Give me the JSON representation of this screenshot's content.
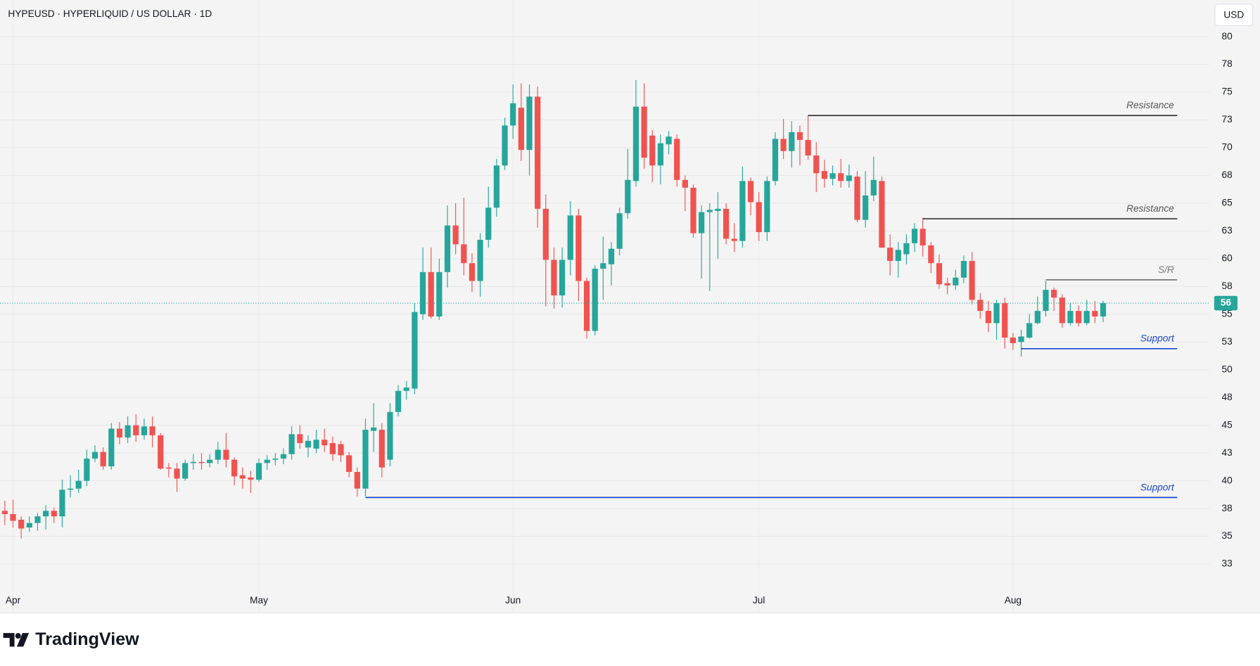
{
  "chart_data": {
    "type": "candlestick",
    "title": "HYPEUSD · HYPERLIQUID / US DOLLAR · 1D",
    "currency": "USD",
    "brand": "TradingView",
    "up_color": "#26a69a",
    "down_color": "#ef5350",
    "categories": [
      null,
      "Apr",
      null,
      null,
      null,
      null,
      null,
      null,
      null,
      null,
      null,
      null,
      null,
      null,
      null,
      null,
      null,
      null,
      null,
      null,
      null,
      null,
      null,
      null,
      null,
      null,
      null,
      null,
      null,
      null,
      null,
      "May",
      null,
      null,
      null,
      null,
      null,
      null,
      null,
      null,
      null,
      null,
      null,
      null,
      null,
      null,
      null,
      null,
      null,
      null,
      null,
      null,
      null,
      null,
      null,
      null,
      null,
      null,
      null,
      null,
      null,
      null,
      "Jun",
      null,
      null,
      null,
      null,
      null,
      null,
      null,
      null,
      null,
      null,
      null,
      null,
      null,
      null,
      null,
      null,
      null,
      null,
      null,
      null,
      null,
      null,
      null,
      null,
      null,
      null,
      null,
      null,
      null,
      "Jul",
      null,
      null,
      null,
      null,
      null,
      null,
      null,
      null,
      null,
      null,
      null,
      null,
      null,
      null,
      null,
      null,
      null,
      null,
      null,
      null,
      null,
      null,
      null,
      null,
      null,
      null,
      null,
      null,
      null,
      null,
      "Aug",
      null,
      null,
      null,
      null,
      null,
      null,
      null,
      null,
      null,
      null,
      null
    ],
    "open": [
      37.3,
      37.0,
      36.5,
      35.8,
      36.2,
      36.8,
      37.3,
      36.8,
      39.2,
      39.3,
      40.0,
      42.0,
      42.6,
      41.3,
      44.7,
      43.9,
      45.0,
      44.1,
      44.9,
      44.1,
      41.2,
      41.1,
      40.2,
      41.6,
      41.7,
      41.6,
      41.9,
      42.8,
      41.9,
      40.5,
      40.3,
      40.1,
      41.6,
      41.9,
      42.0,
      42.4,
      44.2,
      43.0,
      42.9,
      43.7,
      43.4,
      43.3,
      42.3,
      40.8,
      39.3,
      44.5,
      44.6,
      41.9,
      46.2,
      48.1,
      48.3,
      55.0,
      58.8,
      54.8,
      58.8,
      63.0,
      61.3,
      59.6,
      58.0,
      61.7,
      64.6,
      68.4,
      72.0,
      73.6,
      69.8,
      74.6,
      64.5,
      59.9,
      56.7,
      59.9,
      63.9,
      58.0,
      53.5,
      59.1,
      59.5,
      60.9,
      64.1,
      67.0,
      73.7,
      71.1,
      68.4,
      70.3,
      70.8,
      67.1,
      66.4,
      62.3,
      64.2,
      64.3,
      64.5,
      61.8,
      61.6,
      67.0,
      65.1,
      62.4,
      67.0,
      70.8,
      69.7,
      71.4,
      70.7,
      69.3,
      67.9,
      67.2,
      67.7,
      67.0,
      67.4,
      63.5,
      65.7,
      67.0,
      61.0,
      59.8,
      60.4,
      61.4,
      62.7,
      61.2,
      59.6,
      57.8,
      57.6,
      58.3,
      59.8,
      56.3,
      55.3,
      54.2,
      56.0,
      52.9,
      52.5,
      52.9,
      54.2,
      55.3,
      57.2,
      56.5,
      54.2,
      55.3,
      54.2,
      55.3,
      54.8
    ],
    "high": [
      38.2,
      38.3,
      36.8,
      36.8,
      37.1,
      37.8,
      37.6,
      40.1,
      40.5,
      41.0,
      42.8,
      43.2,
      43.0,
      45.2,
      45.3,
      45.8,
      46.0,
      45.6,
      45.8,
      44.3,
      41.6,
      41.6,
      41.9,
      42.4,
      42.5,
      42.4,
      43.5,
      44.3,
      42.1,
      41.2,
      40.9,
      42.0,
      42.3,
      42.5,
      42.9,
      44.9,
      45.0,
      44.1,
      44.6,
      44.7,
      44.0,
      43.6,
      42.6,
      41.2,
      45.6,
      47.0,
      45.2,
      47.0,
      48.6,
      49.0,
      56.0,
      61.0,
      61.0,
      60.0,
      64.8,
      65.0,
      65.5,
      60.5,
      62.3,
      66.5,
      69.0,
      72.7,
      75.7,
      75.8,
      75.7,
      75.5,
      65.8,
      61.0,
      61.0,
      65.2,
      64.5,
      58.3,
      59.4,
      62.0,
      61.5,
      64.6,
      69.9,
      76.1,
      75.8,
      71.6,
      71.2,
      71.5,
      71.2,
      67.5,
      66.7,
      64.8,
      65.0,
      66.0,
      65.0,
      63.2,
      68.3,
      67.3,
      66.0,
      67.4,
      71.4,
      72.6,
      72.4,
      72.0,
      72.9,
      70.5,
      68.9,
      68.4,
      69.0,
      68.5,
      67.9,
      67.9,
      69.2,
      67.4,
      62.2,
      61.5,
      62.2,
      63.2,
      63.7,
      61.5,
      60.4,
      58.3,
      59.0,
      60.3,
      60.6,
      56.9,
      56.2,
      56.3,
      56.5,
      53.3,
      53.6,
      55.0,
      56.6,
      58.0,
      57.4,
      56.8,
      56.0,
      55.8,
      56.3,
      56.2,
      56.2
    ],
    "low": [
      36.0,
      35.8,
      34.8,
      35.4,
      35.5,
      35.6,
      36.2,
      35.8,
      38.5,
      38.9,
      39.5,
      41.7,
      41.0,
      41.0,
      43.3,
      43.4,
      43.5,
      43.7,
      43.0,
      41.0,
      40.3,
      39.0,
      40.0,
      41.0,
      41.0,
      41.2,
      41.5,
      41.2,
      39.6,
      39.3,
      38.9,
      39.9,
      41.0,
      41.4,
      41.5,
      41.9,
      42.9,
      42.1,
      42.5,
      42.6,
      41.8,
      41.7,
      40.3,
      38.6,
      38.6,
      42.6,
      40.3,
      41.3,
      45.8,
      47.3,
      47.8,
      54.5,
      54.6,
      54.5,
      57.4,
      60.4,
      58.5,
      57.0,
      56.6,
      61.0,
      63.8,
      68.0,
      70.8,
      68.8,
      67.5,
      62.8,
      55.7,
      55.5,
      55.6,
      58.5,
      56.2,
      52.8,
      53.1,
      56.3,
      57.6,
      60.3,
      63.6,
      66.5,
      68.1,
      66.9,
      66.7,
      69.4,
      66.5,
      64.3,
      61.9,
      58.2,
      57.1,
      60.0,
      61.3,
      60.6,
      61.0,
      63.9,
      61.6,
      61.6,
      66.6,
      69.0,
      68.2,
      68.4,
      68.9,
      66.0,
      66.4,
      66.6,
      66.4,
      66.4,
      63.3,
      62.8,
      65.2,
      61.0,
      58.5,
      58.3,
      59.5,
      60.6,
      60.2,
      58.7,
      57.3,
      56.8,
      57.2,
      57.8,
      55.9,
      54.6,
      53.4,
      52.7,
      51.9,
      51.8,
      51.2,
      52.8,
      54.1,
      54.8,
      55.3,
      53.8,
      54.0,
      53.9,
      54.0,
      54.2,
      54.3
    ],
    "close": [
      37.0,
      36.4,
      35.7,
      36.2,
      36.8,
      37.3,
      36.8,
      39.2,
      39.3,
      40.0,
      42.0,
      42.6,
      41.3,
      44.7,
      43.9,
      45.0,
      44.1,
      44.9,
      44.1,
      41.1,
      41.1,
      40.2,
      41.6,
      41.7,
      41.6,
      41.9,
      42.8,
      41.9,
      40.4,
      40.2,
      40.1,
      41.6,
      41.9,
      42.0,
      42.4,
      44.2,
      43.4,
      43.6,
      43.7,
      43.2,
      42.4,
      42.3,
      40.8,
      39.3,
      44.6,
      44.8,
      41.2,
      46.2,
      48.1,
      48.4,
      55.2,
      58.8,
      54.8,
      58.8,
      63.0,
      61.3,
      59.6,
      58.0,
      61.7,
      64.6,
      68.4,
      72.0,
      74.0,
      69.8,
      74.6,
      64.5,
      59.9,
      56.7,
      59.9,
      63.9,
      58.0,
      53.5,
      59.1,
      59.6,
      60.9,
      64.1,
      67.1,
      73.7,
      69.1,
      68.4,
      70.4,
      71.0,
      67.1,
      66.4,
      62.3,
      64.2,
      64.4,
      64.5,
      61.8,
      61.6,
      67.0,
      65.1,
      62.4,
      67.0,
      70.8,
      69.7,
      71.4,
      70.7,
      69.3,
      67.7,
      67.2,
      67.7,
      67.0,
      67.5,
      63.5,
      65.7,
      67.1,
      61.0,
      59.8,
      60.8,
      61.4,
      62.7,
      61.2,
      59.6,
      57.7,
      57.6,
      58.3,
      59.8,
      56.3,
      55.3,
      54.2,
      56.0,
      52.9,
      52.4,
      53.0,
      54.2,
      55.3,
      57.2,
      56.5,
      54.2,
      55.3,
      54.2,
      55.3,
      54.8,
      56.0
    ],
    "last_price": 56,
    "ylim": [
      28.1,
      83.3
    ],
    "yticks": [
      80,
      {
        "value": 77.5,
        "label": "78"
      },
      75,
      {
        "value": 72.5,
        "label": "73"
      },
      70,
      {
        "value": 67.5,
        "label": "68"
      },
      65,
      {
        "value": 62.5,
        "label": "63"
      },
      60,
      {
        "value": 57.5,
        "label": "58"
      },
      55,
      {
        "value": 52.5,
        "label": "53"
      },
      50,
      {
        "value": 47.5,
        "label": "48"
      },
      45,
      {
        "value": 42.5,
        "label": "43"
      },
      40,
      {
        "value": 37.5,
        "label": "38"
      },
      35,
      {
        "value": 32.5,
        "label": "33"
      }
    ],
    "grid": true,
    "annotations": [
      {
        "label": "Resistance",
        "price": 72.9,
        "from": 98,
        "color": "#333333",
        "text_color": "#555555"
      },
      {
        "label": "Resistance",
        "price": 63.6,
        "from": 112,
        "color": "#333333",
        "text_color": "#555555"
      },
      {
        "label": "S/R",
        "price": 58.1,
        "from": 127,
        "color": "#777777",
        "text_color": "#777777"
      },
      {
        "label": "Support",
        "price": 51.9,
        "from": 124,
        "color": "#1848cc",
        "text_color": "#1848cc"
      },
      {
        "label": "Support",
        "price": 38.5,
        "from": 44,
        "color": "#1848cc",
        "text_color": "#1848cc"
      }
    ]
  }
}
